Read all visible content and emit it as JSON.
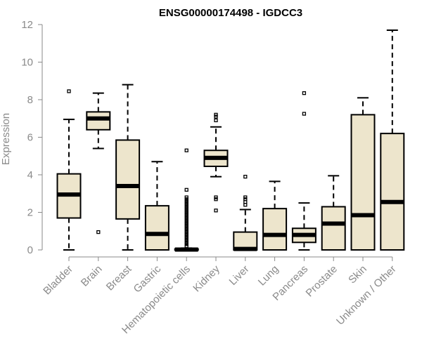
{
  "chart_data": {
    "type": "boxplot",
    "title": "ENSG00000174498 - IGDCC3",
    "xlabel": "",
    "ylabel": "Expression",
    "ylim": [
      0,
      12
    ],
    "yticks": [
      0,
      2,
      4,
      6,
      8,
      10,
      12
    ],
    "colors": {
      "box_fill": "#ede5cc",
      "stroke": "#000000",
      "axis": "#8a8a8a"
    },
    "categories": [
      "Bladder",
      "Brain",
      "Breast",
      "Gastric",
      "Hematopoietic cells",
      "Kidney",
      "Liver",
      "Lung",
      "Pancreas",
      "Prostate",
      "Skin",
      "Unknown / Other"
    ],
    "boxes": [
      {
        "label": "Bladder",
        "min": 0,
        "q1": 1.7,
        "median": 2.95,
        "q3": 4.05,
        "max": 6.95,
        "outliers": [
          8.45
        ]
      },
      {
        "label": "Brain",
        "min": 5.4,
        "q1": 6.4,
        "median": 7.0,
        "q3": 7.35,
        "max": 8.35,
        "outliers": [
          0.95
        ]
      },
      {
        "label": "Breast",
        "min": 0,
        "q1": 1.65,
        "median": 3.4,
        "q3": 5.85,
        "max": 8.8,
        "outliers": []
      },
      {
        "label": "Gastric",
        "min": 0,
        "q1": 0,
        "median": 0.85,
        "q3": 2.35,
        "max": 4.7,
        "outliers": []
      },
      {
        "label": "Hematopoietic cells",
        "min": 0,
        "q1": 0,
        "median": 0.02,
        "q3": 0.05,
        "max": 0.1,
        "outliers": [
          0.2,
          0.3,
          0.4,
          0.5,
          0.6,
          0.7,
          0.8,
          0.9,
          1.0,
          1.1,
          1.2,
          1.3,
          1.4,
          1.5,
          1.6,
          1.7,
          1.8,
          1.9,
          2.0,
          2.1,
          2.2,
          2.3,
          2.4,
          2.5,
          2.6,
          2.7,
          2.8,
          3.2,
          5.3
        ]
      },
      {
        "label": "Kidney",
        "min": 3.9,
        "q1": 4.45,
        "median": 4.9,
        "q3": 5.3,
        "max": 6.55,
        "outliers": [
          2.1,
          2.7,
          2.8,
          6.9,
          7.1,
          7.2
        ]
      },
      {
        "label": "Liver",
        "min": 0,
        "q1": 0,
        "median": 0.05,
        "q3": 0.95,
        "max": 2.15,
        "outliers": [
          2.4,
          2.55,
          2.7,
          2.8,
          3.9
        ]
      },
      {
        "label": "Lung",
        "min": 0,
        "q1": 0,
        "median": 0.8,
        "q3": 2.2,
        "max": 3.65,
        "outliers": []
      },
      {
        "label": "Pancreas",
        "min": 0,
        "q1": 0.4,
        "median": 0.8,
        "q3": 1.15,
        "max": 2.5,
        "outliers": [
          7.25,
          8.35
        ]
      },
      {
        "label": "Prostate",
        "min": 0,
        "q1": 0,
        "median": 1.4,
        "q3": 2.3,
        "max": 3.95,
        "outliers": []
      },
      {
        "label": "Skin",
        "min": 0,
        "q1": 0,
        "median": 1.85,
        "q3": 7.2,
        "max": 8.1,
        "outliers": []
      },
      {
        "label": "Unknown / Other",
        "min": 0,
        "q1": 0,
        "median": 2.55,
        "q3": 6.2,
        "max": 11.7,
        "outliers": []
      }
    ]
  }
}
